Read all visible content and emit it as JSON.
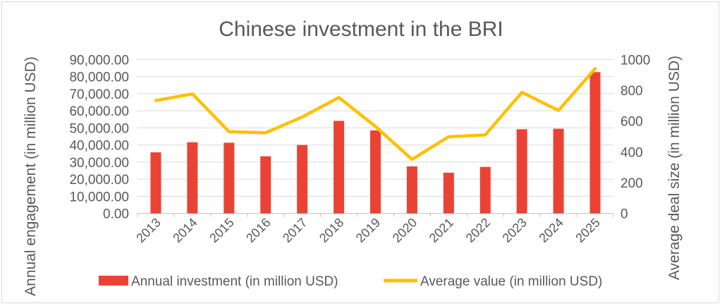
{
  "chart_data": {
    "type": "bar",
    "title": "Chinese investment in the BRI",
    "categories": [
      "2013",
      "2014",
      "2015",
      "2016",
      "2017",
      "2018",
      "2019",
      "2020",
      "2021",
      "2022",
      "2023",
      "2024",
      "2025"
    ],
    "series": [
      {
        "name": "Annual investment (in million USD)",
        "type": "bar",
        "axis": "left",
        "color": "#EA4335",
        "values": [
          35700,
          41600,
          41300,
          33400,
          40000,
          54100,
          48500,
          27500,
          23800,
          27200,
          49200,
          49500,
          82600
        ]
      },
      {
        "name": "Average value (in million USD)",
        "type": "line",
        "axis": "right",
        "color": "#FFC000",
        "values": [
          733,
          776,
          531,
          524,
          626,
          753,
          565,
          351,
          498,
          510,
          786,
          669,
          940
        ]
      }
    ],
    "ylabel": "Annual engagement (in million USD)",
    "y2label": "Average deal size (in million USD)",
    "ylim": [
      0,
      90000
    ],
    "y2lim": [
      0,
      1000
    ],
    "yticks": [
      "0.00",
      "10,000.00",
      "20,000.00",
      "30,000.00",
      "40,000.00",
      "50,000.00",
      "60,000.00",
      "70,000.00",
      "80,000.00",
      "90,000.00"
    ],
    "y2ticks": [
      "0",
      "200",
      "400",
      "600",
      "800",
      "1000"
    ],
    "grid": true,
    "legend": "bottom"
  }
}
